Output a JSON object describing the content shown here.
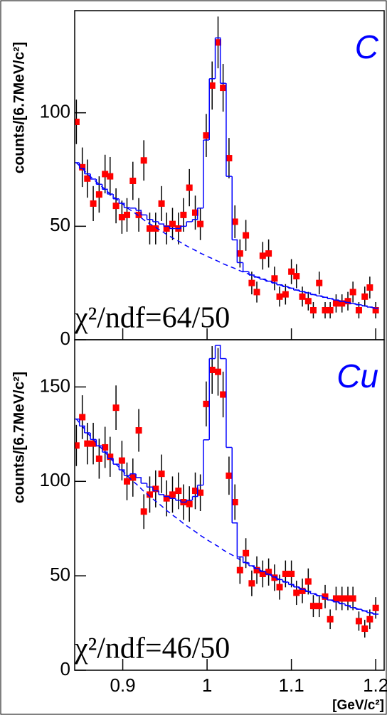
{
  "chart_data": [
    {
      "type": "scatter",
      "panel_label": "C",
      "annotation": "χ²/ndf=64/50",
      "y_label": "counts/[6.7MeV/c²]",
      "xlim": [
        0.843,
        1.21
      ],
      "ylim": [
        0,
        145
      ],
      "xticks": [
        0.9,
        1,
        1.1,
        1.2
      ],
      "yticks": [
        0,
        50,
        100
      ],
      "x": [
        0.845,
        0.852,
        0.858,
        0.865,
        0.872,
        0.879,
        0.885,
        0.892,
        0.899,
        0.905,
        0.912,
        0.919,
        0.925,
        0.932,
        0.939,
        0.946,
        0.952,
        0.959,
        0.966,
        0.972,
        0.979,
        0.986,
        0.992,
        0.999,
        1.006,
        1.013,
        1.019,
        1.026,
        1.033,
        1.039,
        1.046,
        1.053,
        1.059,
        1.066,
        1.073,
        1.08,
        1.086,
        1.093,
        1.1,
        1.106,
        1.113,
        1.12,
        1.126,
        1.133,
        1.14,
        1.146,
        1.153,
        1.16,
        1.167,
        1.173,
        1.18,
        1.187,
        1.193,
        1.2
      ],
      "series": [
        {
          "style": "points",
          "color": "#ff0000",
          "values": [
            96,
            76,
            71,
            60,
            64,
            73,
            72,
            59,
            54,
            55,
            70,
            55,
            79,
            49,
            49,
            60,
            49,
            51,
            49,
            55,
            67,
            56,
            51,
            90,
            112,
            131,
            111,
            80,
            52,
            38,
            46,
            25,
            21,
            37,
            38,
            27,
            19,
            20,
            30,
            28,
            19,
            17,
            13,
            25,
            13,
            13,
            16,
            16,
            17,
            21,
            13,
            19,
            23,
            13
          ],
          "errors": [
            9.8,
            8.7,
            8.4,
            7.7,
            8,
            8.5,
            8.5,
            7.7,
            7.3,
            7.4,
            8.4,
            7.4,
            8.9,
            7,
            7,
            7.7,
            7,
            7.1,
            7,
            7.4,
            8.2,
            7.5,
            7.1,
            9.5,
            10.6,
            11.4,
            10.5,
            8.9,
            7.2,
            6.2,
            6.8,
            5,
            4.6,
            6.1,
            6.2,
            5.2,
            4.4,
            4.5,
            5.5,
            5.3,
            4.4,
            4.1,
            3.6,
            5,
            3.6,
            3.6,
            4,
            4,
            4.1,
            4.6,
            3.6,
            4.4,
            4.8,
            3.6
          ]
        },
        {
          "style": "step",
          "color": "#0000ff",
          "values": [
            78,
            75.5,
            73.1,
            70.8,
            68.5,
            66.3,
            64.2,
            62.1,
            60.1,
            58.2,
            58,
            57,
            55,
            53,
            52,
            51,
            50,
            49,
            49,
            50,
            52,
            53,
            58,
            88,
            115,
            133,
            113,
            72,
            44,
            34,
            30,
            28.5,
            27.6,
            26.7,
            25.8,
            25,
            24.2,
            23.4,
            22.7,
            21.9,
            21.2,
            20.6,
            19.9,
            19.3,
            18.7,
            18.1,
            17.5,
            16.9,
            16.4,
            15.9,
            15.4,
            14.9,
            14.4,
            13.9
          ]
        },
        {
          "style": "dashed",
          "color": "#0000ff",
          "values": [
            78,
            75.5,
            73.1,
            70.8,
            68.5,
            66.3,
            64.2,
            62.1,
            60.1,
            58.2,
            56.4,
            54.6,
            52.8,
            51.1,
            49.5,
            47.9,
            46.4,
            44.9,
            43.5,
            42.1,
            40.7,
            39.4,
            38.2,
            36.9,
            35.8,
            34.6,
            33.5,
            32.4,
            31.4,
            30.4,
            29.4,
            28.5,
            27.6,
            26.7,
            25.8,
            25,
            24.2,
            23.4,
            22.7,
            21.9,
            21.2,
            20.6,
            19.9,
            19.3,
            18.7,
            18.1,
            17.5,
            16.9,
            16.4,
            15.9,
            15.4,
            14.9,
            14.4,
            13.9
          ]
        }
      ]
    },
    {
      "type": "scatter",
      "panel_label": "Cu",
      "annotation": "χ²/ndf=46/50",
      "y_label": "counts/[6.7MeV/c²]",
      "x_label": "[GeV/c²]",
      "xlim": [
        0.843,
        1.21
      ],
      "ylim": [
        0,
        175
      ],
      "xticks": [
        0.9,
        1,
        1.1,
        1.2
      ],
      "yticks": [
        0,
        50,
        100,
        150
      ],
      "x": [
        0.845,
        0.852,
        0.858,
        0.865,
        0.872,
        0.879,
        0.885,
        0.892,
        0.899,
        0.905,
        0.912,
        0.919,
        0.925,
        0.932,
        0.939,
        0.946,
        0.952,
        0.959,
        0.966,
        0.972,
        0.979,
        0.986,
        0.992,
        0.999,
        1.006,
        1.013,
        1.019,
        1.026,
        1.033,
        1.039,
        1.046,
        1.053,
        1.059,
        1.066,
        1.073,
        1.08,
        1.086,
        1.093,
        1.1,
        1.106,
        1.113,
        1.12,
        1.126,
        1.133,
        1.14,
        1.146,
        1.153,
        1.16,
        1.167,
        1.173,
        1.18,
        1.187,
        1.193,
        1.2
      ],
      "series": [
        {
          "style": "points",
          "color": "#ff0000",
          "values": [
            119,
            134,
            120,
            120,
            112,
            118,
            113,
            139,
            111,
            100,
            102,
            127,
            84,
            93,
            96,
            104,
            91,
            93,
            95,
            89,
            88,
            95,
            94,
            141,
            159,
            158,
            146,
            103,
            89,
            53,
            62,
            46,
            53,
            51,
            52,
            49,
            44,
            51,
            51,
            41,
            42,
            47,
            34,
            34,
            39,
            27,
            38,
            38,
            38,
            38,
            26,
            22,
            27,
            33
          ],
          "errors": [
            10.9,
            11.6,
            11,
            11,
            10.6,
            10.9,
            10.6,
            11.8,
            10.5,
            10,
            10.1,
            11.3,
            9.2,
            9.6,
            9.8,
            10.2,
            9.5,
            9.6,
            9.7,
            9.4,
            9.4,
            9.7,
            9.7,
            11.9,
            12.6,
            12.6,
            12.1,
            10.1,
            9.4,
            7.3,
            7.9,
            6.8,
            7.3,
            7.1,
            7.2,
            7,
            6.6,
            7.1,
            7.1,
            6.4,
            6.5,
            6.9,
            5.8,
            5.8,
            6.2,
            5.2,
            6.2,
            6.2,
            6.2,
            6.2,
            5.1,
            4.7,
            5.2,
            5.7
          ]
        },
        {
          "style": "step",
          "color": "#0000ff",
          "values": [
            133,
            129.3,
            125.7,
            122.2,
            118.8,
            115.5,
            112.2,
            109.1,
            106.1,
            103.1,
            104,
            102,
            99,
            97,
            95,
            93,
            92,
            91,
            90,
            89,
            90,
            92,
            98,
            122,
            165,
            172,
            165,
            118,
            78,
            60,
            57,
            55.3,
            53.8,
            52.3,
            50.8,
            49.4,
            48,
            46.7,
            45.4,
            44.1,
            42.9,
            41.7,
            40.5,
            39.4,
            38.3,
            37.2,
            36.2,
            35.2,
            34.2,
            33.2,
            32.3,
            31.4,
            30.5,
            29.7
          ]
        },
        {
          "style": "dashed",
          "color": "#0000ff",
          "values": [
            133,
            129.3,
            125.7,
            122.2,
            118.8,
            115.5,
            112.2,
            109.1,
            106.1,
            103.1,
            100.2,
            97.4,
            94.7,
            92.1,
            89.5,
            87,
            84.6,
            82.2,
            79.9,
            77.7,
            75.5,
            73.4,
            71.4,
            69.4,
            67.4,
            65.6,
            63.7,
            61.9,
            60.2,
            58.5,
            56.9,
            55.3,
            53.8,
            52.3,
            50.8,
            49.4,
            48,
            46.7,
            45.4,
            44.1,
            42.9,
            41.7,
            40.5,
            39.4,
            38.3,
            37.2,
            36.2,
            35.2,
            34.2,
            33.2,
            32.3,
            31.4,
            30.5,
            29.7
          ]
        }
      ]
    }
  ]
}
